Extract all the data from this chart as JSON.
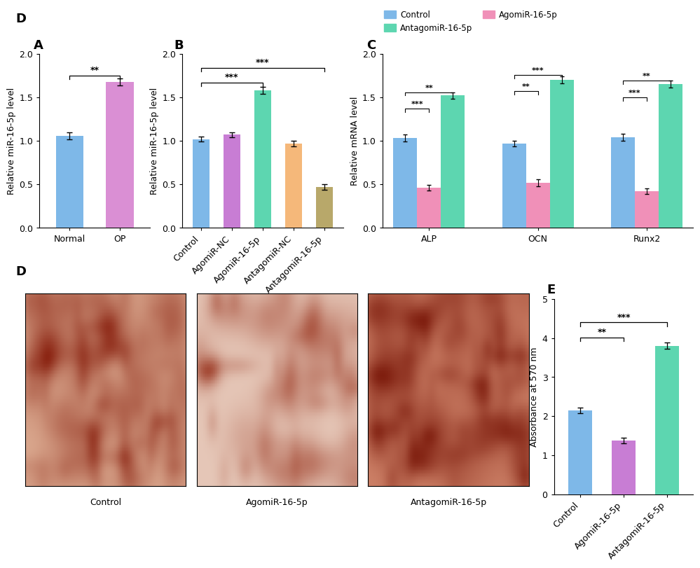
{
  "panel_A": {
    "categories": [
      "Normal",
      "OP"
    ],
    "values": [
      1.06,
      1.68
    ],
    "errors": [
      0.04,
      0.04
    ],
    "colors": [
      "#7EB8E8",
      "#DA8FD4"
    ],
    "ylabel": "Relative miR-16-5p level",
    "ylim": [
      0,
      2.0
    ],
    "yticks": [
      0.0,
      0.5,
      1.0,
      1.5,
      2.0
    ]
  },
  "panel_B": {
    "categories": [
      "Control",
      "AgomiR-NC",
      "AgomiR-16-5p",
      "AntagomiR-NC",
      "AntagomiR-16-5p"
    ],
    "values": [
      1.02,
      1.07,
      1.58,
      0.97,
      0.47
    ],
    "errors": [
      0.03,
      0.03,
      0.04,
      0.03,
      0.03
    ],
    "colors": [
      "#7EB8E8",
      "#C87DD4",
      "#5DD6B0",
      "#F5B87A",
      "#B8A86A"
    ],
    "ylabel": "Relative miR-16-5p level",
    "ylim": [
      0,
      2.0
    ],
    "yticks": [
      0.0,
      0.5,
      1.0,
      1.5,
      2.0
    ]
  },
  "panel_C": {
    "gene_groups": [
      "ALP",
      "OCN",
      "Runx2"
    ],
    "series": [
      "Control",
      "AgomiR-16-5p",
      "AntagomiR-16-5p"
    ],
    "values": {
      "ALP": [
        1.03,
        0.46,
        1.52
      ],
      "OCN": [
        0.97,
        0.52,
        1.7
      ],
      "Runx2": [
        1.04,
        0.42,
        1.65
      ]
    },
    "errors": {
      "ALP": [
        0.04,
        0.03,
        0.04
      ],
      "OCN": [
        0.03,
        0.04,
        0.04
      ],
      "Runx2": [
        0.04,
        0.03,
        0.04
      ]
    },
    "colors": [
      "#7EB8E8",
      "#F090B8",
      "#5DD6B0"
    ],
    "ylabel": "Relative mRNA level",
    "ylim": [
      0,
      2.0
    ],
    "yticks": [
      0.0,
      0.5,
      1.0,
      1.5,
      2.0
    ]
  },
  "panel_E": {
    "categories": [
      "Control",
      "AgomiR-16-5p",
      "AntagomiR-16-5p"
    ],
    "values": [
      2.15,
      1.38,
      3.8
    ],
    "errors": [
      0.07,
      0.07,
      0.08
    ],
    "colors": [
      "#7EB8E8",
      "#C87DD4",
      "#5DD6B0"
    ],
    "ylabel": "Absorbance at 570 nm",
    "ylim": [
      0,
      5
    ],
    "yticks": [
      0,
      1,
      2,
      3,
      4,
      5
    ]
  },
  "background_color": "#FFFFFF",
  "spine_color": "#000000",
  "tick_color": "#000000",
  "font_size": 9,
  "sig_font_size": 9,
  "bar_width": 0.55,
  "capsize": 3,
  "img_colors_bg": [
    "#C47860",
    "#D4B5A8",
    "#B85535"
  ],
  "img_dark": [
    "#7A1F10",
    "#9A4030",
    "#7A1F10"
  ],
  "img_mid": [
    "#C06040",
    "#C09080",
    "#B04030"
  ],
  "img_light": [
    "#E8C0A8",
    "#E8D0C8",
    "#D89080"
  ]
}
